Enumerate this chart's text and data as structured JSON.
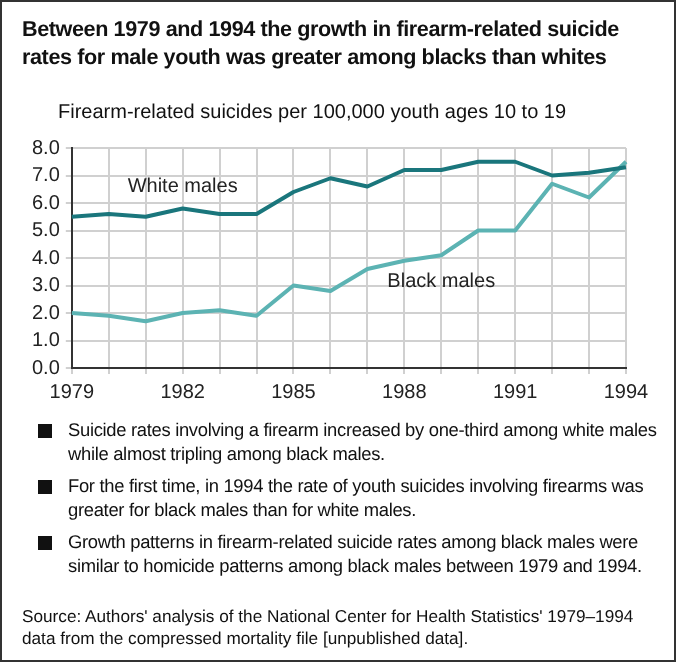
{
  "chart_data": {
    "type": "line",
    "title": "Between 1979 and 1994 the growth in firearm-related suicide rates for male youth was greater among blacks than whites",
    "ylabel": "Firearm-related suicides per 100,000 youth ages 10 to 19",
    "categories": [
      "1979",
      null,
      null,
      "1982",
      null,
      null,
      "1985",
      null,
      null,
      "1988",
      null,
      null,
      "1991",
      null,
      null,
      "1994"
    ],
    "series": [
      {
        "name": "White males",
        "color": "#1a767c",
        "values": [
          5.5,
          5.6,
          5.5,
          5.8,
          5.6,
          5.6,
          6.4,
          6.9,
          6.6,
          7.2,
          7.2,
          7.5,
          7.5,
          7.0,
          7.1,
          7.3
        ]
      },
      {
        "name": "Black males",
        "color": "#5cb3b3",
        "values": [
          2.0,
          1.9,
          1.7,
          2.0,
          2.1,
          1.9,
          3.0,
          2.8,
          3.6,
          3.9,
          4.1,
          5.0,
          5.0,
          6.7,
          6.2,
          7.5
        ]
      }
    ],
    "ylim": [
      0,
      8
    ],
    "yticks": [
      {
        "value": 0,
        "label": "0.0"
      },
      {
        "value": 1,
        "label": "1.0"
      },
      {
        "value": 2,
        "label": "2.0"
      },
      {
        "value": 3,
        "label": "3.0"
      },
      {
        "value": 4,
        "label": "4.0"
      },
      {
        "value": 5,
        "label": "5.0"
      },
      {
        "value": 6,
        "label": "6.0"
      },
      {
        "value": 7,
        "label": "7.0"
      },
      {
        "value": 8,
        "label": "8.0"
      }
    ],
    "grid": true,
    "legend": false,
    "marker": "none",
    "line_style": "solid",
    "annotations": [
      "Suicide rates involving a firearm increased by one-third among white males while almost tripling among black males.",
      "For the first time, in 1994 the rate of youth suicides involving firearms was greater for black males than for white males.",
      "Growth patterns in firearm-related suicide rates among black males were similar to homicide patterns among black males between 1979 and 1994.",
      "Source:  Authors' analysis of the National Center for Health Statistics' 1979–1994 data from the compressed mortality file [unpublished data]."
    ]
  }
}
